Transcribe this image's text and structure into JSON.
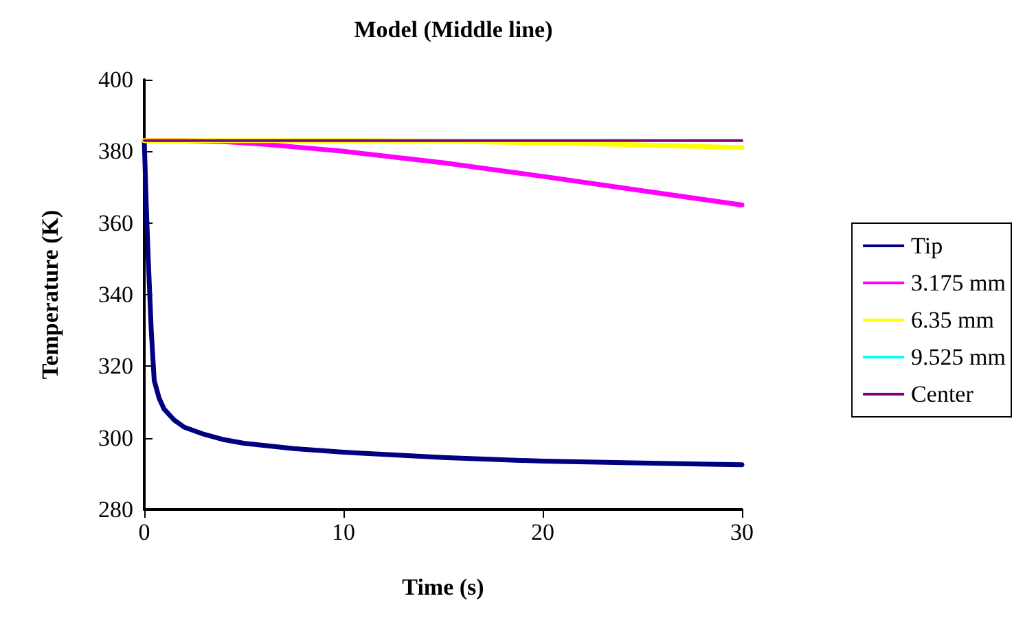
{
  "chart_data": {
    "type": "line",
    "title": "Model (Middle line)",
    "xlabel": "Time (s)",
    "ylabel": "Temperature (K)",
    "xlim": [
      0,
      30
    ],
    "xticks": [
      0,
      10,
      20,
      30
    ],
    "ylim": [
      280,
      400
    ],
    "yticks": [
      280,
      300,
      320,
      340,
      360,
      380,
      400
    ],
    "grid": false,
    "legend": "right",
    "marker": "none",
    "line_style": "solid",
    "series": [
      {
        "name": "Tip",
        "color": "#000080",
        "x": [
          0,
          0.1,
          0.2,
          0.35,
          0.5,
          0.75,
          1,
          1.5,
          2,
          3,
          4,
          5,
          7.5,
          10,
          15,
          20,
          25,
          30
        ],
        "values": [
          383,
          365,
          350,
          330,
          316,
          311,
          308,
          305,
          303,
          301,
          299.5,
          298.5,
          297,
          296,
          294.5,
          293.5,
          293,
          292.5
        ]
      },
      {
        "name": "3.175 mm",
        "color": "#ff00ff",
        "x": [
          0,
          2,
          4,
          6,
          8,
          10,
          15,
          20,
          25,
          30
        ],
        "values": [
          383,
          383,
          382.7,
          382,
          381,
          380,
          376.8,
          373,
          369,
          365
        ]
      },
      {
        "name": "6.35 mm",
        "color": "#ffff00",
        "x": [
          0,
          10,
          15,
          20,
          25,
          30
        ],
        "values": [
          383,
          383,
          382.8,
          382.4,
          381.8,
          381
        ]
      },
      {
        "name": "9.525 mm",
        "color": "#00ffff"
      },
      {
        "name": "Center",
        "color": "#800080",
        "x": [
          0,
          30
        ],
        "values": [
          383,
          383
        ]
      }
    ]
  }
}
